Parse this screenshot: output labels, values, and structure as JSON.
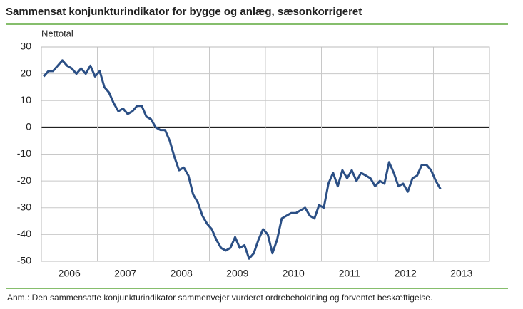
{
  "chart_data": {
    "type": "line",
    "title": "Sammensat konjunkturindikator for bygge og anlæg, sæsonkorrigeret",
    "y_label": "Nettotal",
    "note": "Anm.: Den sammensatte konjunkturindikator sammenvejer vurderet ordrebeholdning og forventet beskæftigelse.",
    "color": "#2b4f85",
    "x": [
      2006.042,
      2006.125,
      2006.208,
      2006.292,
      2006.375,
      2006.458,
      2006.542,
      2006.625,
      2006.708,
      2006.792,
      2006.875,
      2006.958,
      2007.042,
      2007.125,
      2007.208,
      2007.292,
      2007.375,
      2007.458,
      2007.542,
      2007.625,
      2007.708,
      2007.792,
      2007.875,
      2007.958,
      2008.042,
      2008.125,
      2008.208,
      2008.292,
      2008.375,
      2008.458,
      2008.542,
      2008.625,
      2008.708,
      2008.792,
      2008.875,
      2008.958,
      2009.042,
      2009.125,
      2009.208,
      2009.292,
      2009.375,
      2009.458,
      2009.542,
      2009.625,
      2009.708,
      2009.792,
      2009.875,
      2009.958,
      2010.042,
      2010.125,
      2010.208,
      2010.292,
      2010.375,
      2010.458,
      2010.542,
      2010.625,
      2010.708,
      2010.792,
      2010.875,
      2010.958,
      2011.042,
      2011.125,
      2011.208,
      2011.292,
      2011.375,
      2011.458,
      2011.542,
      2011.625,
      2011.708,
      2011.792,
      2011.875,
      2011.958,
      2012.042,
      2012.125,
      2012.208,
      2012.292,
      2012.375,
      2012.458,
      2012.542,
      2012.625,
      2012.708,
      2012.792,
      2012.875,
      2012.958,
      2013.042,
      2013.125
    ],
    "values": [
      19,
      21,
      21,
      23,
      25,
      23,
      22,
      20,
      22,
      20,
      23,
      19,
      21,
      15,
      13,
      9,
      6,
      7,
      5,
      6,
      8,
      8,
      4,
      3,
      0,
      -1,
      -1,
      -5,
      -11,
      -16,
      -15,
      -18,
      -25,
      -28,
      -33,
      -36,
      -38,
      -42,
      -45,
      -46,
      -45,
      -41,
      -45,
      -44,
      -49,
      -47,
      -42,
      -38,
      -40,
      -47,
      -42,
      -34,
      -33,
      -32,
      -32,
      -31,
      -30,
      -33,
      -34,
      -29,
      -30,
      -21,
      -17,
      -22,
      -16,
      -19,
      -16,
      -20,
      -17,
      -18,
      -19,
      -22,
      -20,
      -21,
      -13,
      -17,
      -22,
      -21,
      -24,
      -19,
      -18,
      -14,
      -14,
      -16,
      -20,
      -23
    ],
    "xlim": [
      2006,
      2014
    ],
    "xticks": [
      2006,
      2007,
      2008,
      2009,
      2010,
      2011,
      2012,
      2013
    ],
    "ylim": [
      -50,
      30
    ],
    "yticks": [
      30,
      20,
      10,
      0,
      -10,
      -20,
      -30,
      -40,
      -50
    ],
    "grid": true
  }
}
